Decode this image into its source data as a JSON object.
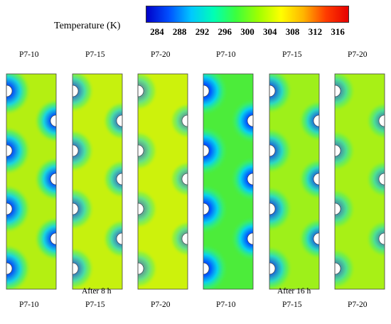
{
  "legend": {
    "title": "Temperature (K)",
    "ticks": [
      "284",
      "288",
      "292",
      "296",
      "300",
      "304",
      "308",
      "312",
      "316"
    ],
    "range": [
      282,
      318
    ],
    "colors": [
      "#0000c8",
      "#0050ff",
      "#00c8ff",
      "#00ffb4",
      "#3cff3c",
      "#a0ff00",
      "#ffff00",
      "#ffb400",
      "#ff3c00",
      "#e60000"
    ]
  },
  "panels": [
    {
      "top_label": "P7-10",
      "bottom_label": "P7-10",
      "group": "After 8 h",
      "field_color": "#b4ef12",
      "left_cold": 0.95,
      "right_cold": 0.95
    },
    {
      "top_label": "P7-15",
      "bottom_label": "P7-15",
      "group": "After 8 h",
      "field_color": "#c6f10e",
      "left_cold": 0.7,
      "right_cold": 0.7
    },
    {
      "top_label": "P7-20",
      "bottom_label": "P7-20",
      "group": "After 8 h",
      "field_color": "#cdf20c",
      "left_cold": 0.55,
      "right_cold": 0.55
    },
    {
      "top_label": "P7-10",
      "bottom_label": "P7-10",
      "group": "After 16 h",
      "field_color": "#4cec3a",
      "left_cold": 1.0,
      "right_cold": 1.0
    },
    {
      "top_label": "P7-15",
      "bottom_label": "P7-15",
      "group": "After 16 h",
      "field_color": "#9ef01a",
      "left_cold": 0.8,
      "right_cold": 0.8
    },
    {
      "top_label": "P7-20",
      "bottom_label": "P7-20",
      "group": "After 16 h",
      "field_color": "#a8f016",
      "left_cold": 0.6,
      "right_cold": 0.6
    }
  ],
  "groups": [
    "After 8 h",
    "After 16 h"
  ]
}
